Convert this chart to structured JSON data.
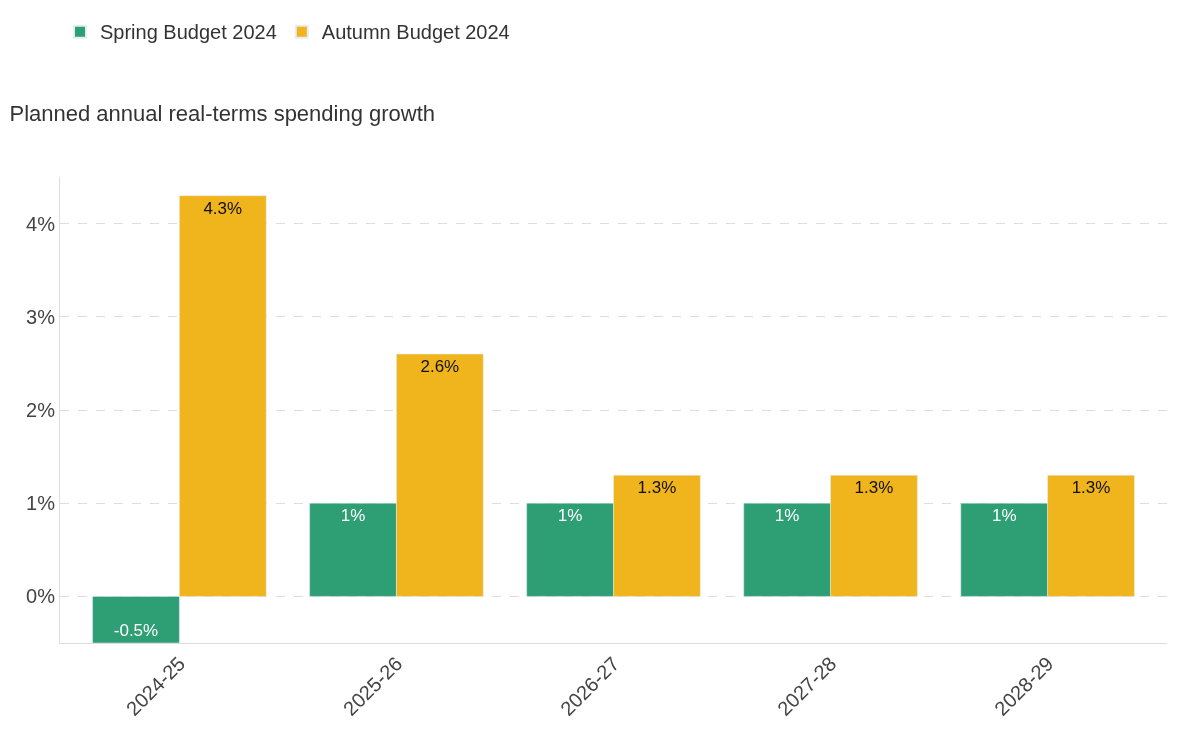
{
  "chart_data": {
    "type": "bar",
    "title": "Planned annual real-terms spending growth",
    "categories": [
      "2024-25",
      "2025-26",
      "2026-27",
      "2027-28",
      "2028-29"
    ],
    "series": [
      {
        "name": "Spring Budget 2024",
        "color": "#2e9e74",
        "values": [
          -0.5,
          1,
          1,
          1,
          1
        ],
        "value_labels": [
          "-0.5%",
          "1%",
          "1%",
          "1%",
          "1%"
        ]
      },
      {
        "name": "Autumn Budget 2024",
        "color": "#f0b41c",
        "values": [
          4.3,
          2.6,
          1.3,
          1.3,
          1.3
        ],
        "value_labels": [
          "4.3%",
          "2.6%",
          "1.3%",
          "1.3%",
          "1.3%"
        ]
      }
    ],
    "ylim": [
      -0.5,
      4.5
    ],
    "yticks": [
      {
        "value": 0,
        "label": "0%"
      },
      {
        "value": 1,
        "label": "1%"
      },
      {
        "value": 2,
        "label": "2%"
      },
      {
        "value": 3,
        "label": "3%"
      },
      {
        "value": 4,
        "label": "4%"
      }
    ],
    "grid": "y",
    "legend": "top left"
  }
}
